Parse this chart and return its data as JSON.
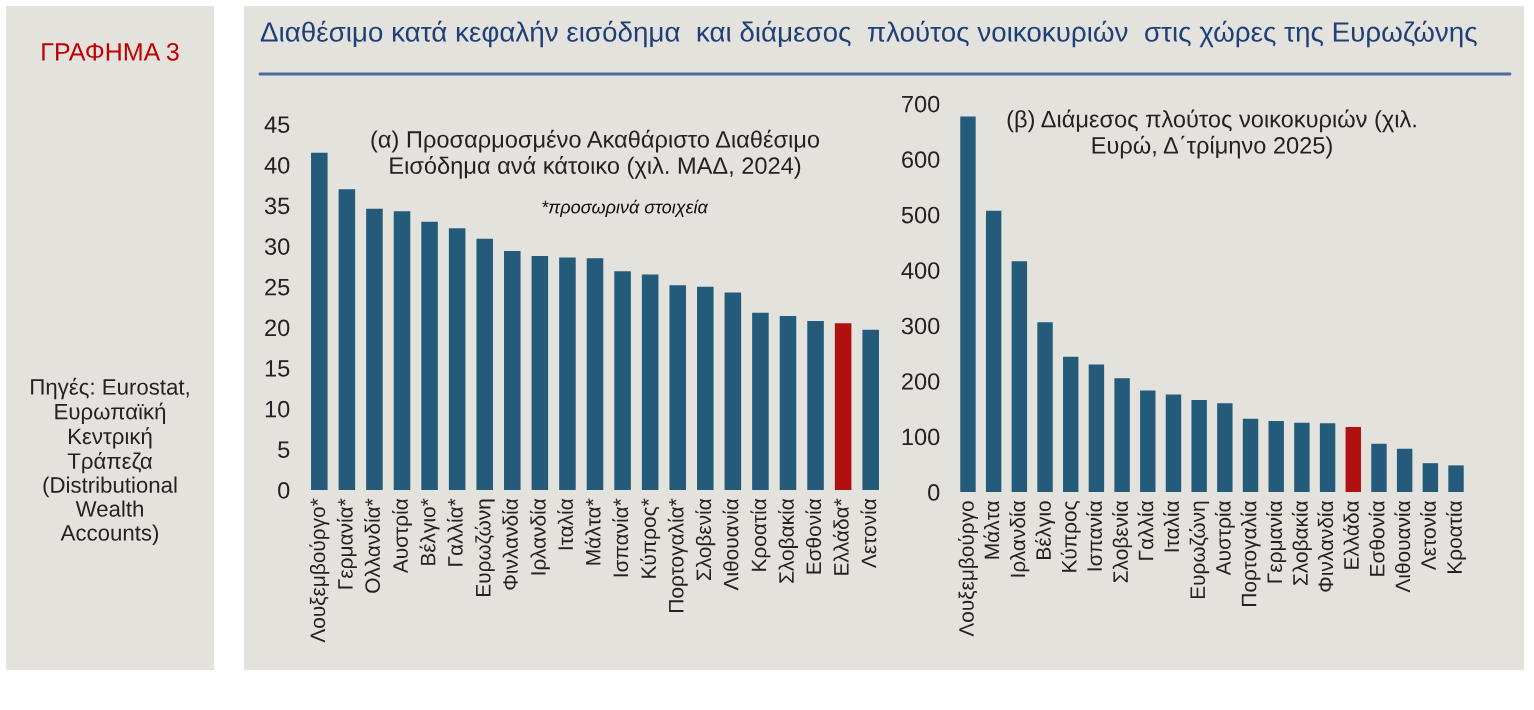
{
  "chart_data": [
    {
      "type": "bar",
      "title": "Διαθέσιμο κατά κεφαλήν εισόδημα  και διάμεσος  πλούτος νοικοκυριών  στις χώρες της Ευρωζώνης",
      "subtitle": "(α) Προσαρμοσμένο Ακαθάριστο Διαθέσιμο\nΕισόδημα ανά κάτοικο (χιλ. ΜΑΔ, 2024)",
      "annotations": [
        "ΓΡΑΦΗΜΑ 3",
        "Πηγές: Eurostat, Ευρωπαϊκή Κεντρική Τράπεζα (Distributional Wealth Accounts)",
        "*προσωρινά στοιχεία"
      ],
      "categories": [
        "Λουξεμβούργο*",
        "Γερμανία*",
        "Ολλανδία*",
        "Αυστρία",
        "Βέλγιο*",
        "Γαλλία*",
        "Ευρωζώνη",
        "Φινλανδία",
        "Ιρλανδία",
        "Ιταλία",
        "Μάλτα*",
        "Ισπανία*",
        "Κύπρος*",
        "Πορτογαλία*",
        "Σλοβενία",
        "Λιθουανία",
        "Κροατία",
        "Σλοβακία",
        "Εσθονία",
        "Ελλάδα*",
        "Λετονία"
      ],
      "values": [
        41.5,
        37.0,
        34.6,
        34.3,
        33.0,
        32.2,
        30.9,
        29.4,
        28.8,
        28.6,
        28.5,
        26.9,
        26.5,
        25.2,
        25.0,
        24.3,
        21.8,
        21.4,
        20.8,
        20.5,
        19.7
      ],
      "colors": [
        "#245a7a",
        "#245a7a",
        "#245a7a",
        "#245a7a",
        "#245a7a",
        "#245a7a",
        "#245a7a",
        "#245a7a",
        "#245a7a",
        "#245a7a",
        "#245a7a",
        "#245a7a",
        "#245a7a",
        "#245a7a",
        "#245a7a",
        "#245a7a",
        "#245a7a",
        "#245a7a",
        "#245a7a",
        "#b01010",
        "#245a7a"
      ],
      "ylim": [
        0,
        45
      ],
      "yticks": [
        0,
        5,
        10,
        15,
        20,
        25,
        30,
        35,
        40,
        45
      ],
      "grid": false
    },
    {
      "type": "bar",
      "subtitle": "(β) Διάμεσος πλούτος νοικοκυριών (χιλ.\nΕυρώ, Δ΄τρίμηνο 2025)",
      "categories": [
        "Λουξεμβούργο",
        "Μάλτα",
        "Ιρλανδία",
        "Βέλγιο",
        "Κύπρος",
        "Ισπανία",
        "Σλοβενία",
        "Γαλλία",
        "Ιταλία",
        "Ευρωζώνη",
        "Αυστρία",
        "Πορτογαλία",
        "Γερμανία",
        "Σλοβακία",
        "Φινλανδία",
        "Ελλάδα",
        "Εσθονία",
        "Λιθουανία",
        "Λετονία",
        "Κροατία"
      ],
      "values": [
        677,
        507,
        416,
        306,
        244,
        230,
        205,
        183,
        176,
        166,
        160,
        132,
        128,
        125,
        124,
        117,
        87,
        78,
        52,
        48
      ],
      "colors": [
        "#245a7a",
        "#245a7a",
        "#245a7a",
        "#245a7a",
        "#245a7a",
        "#245a7a",
        "#245a7a",
        "#245a7a",
        "#245a7a",
        "#245a7a",
        "#245a7a",
        "#245a7a",
        "#245a7a",
        "#245a7a",
        "#245a7a",
        "#b01010",
        "#245a7a",
        "#245a7a",
        "#245a7a",
        "#245a7a"
      ],
      "ylim": [
        0,
        700
      ],
      "yticks": [
        0,
        100,
        200,
        300,
        400,
        500,
        600,
        700
      ],
      "grid": false
    }
  ]
}
